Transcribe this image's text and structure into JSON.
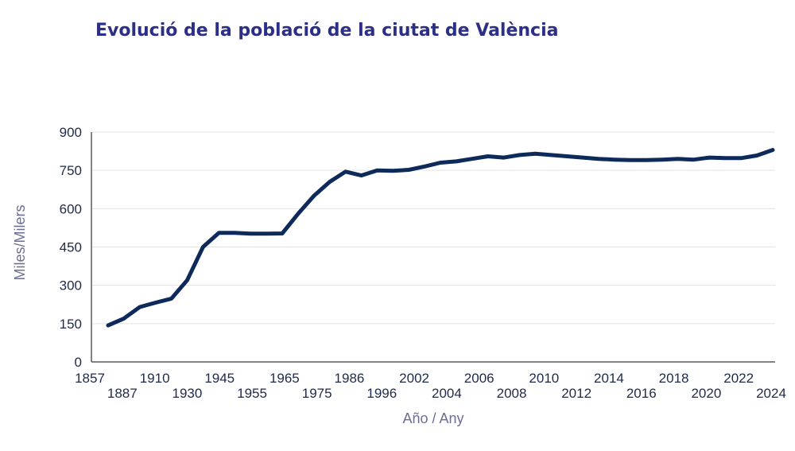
{
  "chart_data": {
    "type": "line",
    "title": "Evolució de la població de la ciutat de València",
    "xlabel": "Año / Any",
    "ylabel": "Miles/Milers",
    "ylim": [
      0,
      900
    ],
    "yticks": [
      0,
      150,
      300,
      450,
      600,
      750,
      900
    ],
    "grid": true,
    "legend": "none",
    "x": [
      "1857",
      "1877",
      "1887",
      "1900",
      "1910",
      "1920",
      "1930",
      "1940",
      "1945",
      "1950",
      "1955",
      "1960",
      "1965",
      "1970",
      "1975",
      "1981",
      "1986",
      "1991",
      "1996",
      "2000",
      "2002",
      "2003",
      "2004",
      "2005",
      "2006",
      "2007",
      "2008",
      "2009",
      "2010",
      "2011",
      "2012",
      "2013",
      "2014",
      "2015",
      "2016",
      "2017",
      "2018",
      "2019",
      "2020",
      "2021",
      "2022",
      "2023",
      "2024"
    ],
    "x_tick_labels_top": [
      "1857",
      "1910",
      "1945",
      "1965",
      "1986",
      "2002",
      "2006",
      "2010",
      "2014",
      "2018",
      "2022"
    ],
    "x_tick_labels_bottom": [
      "1887",
      "1930",
      "1955",
      "1975",
      "1996",
      "2004",
      "2008",
      "2012",
      "2016",
      "2020",
      "2024"
    ],
    "series": [
      {
        "color": "#0d2a5a",
        "values": [
          143,
          170,
          215,
          232,
          248,
          320,
          450,
          505,
          505,
          502,
          502,
          503,
          580,
          650,
          705,
          745,
          730,
          750,
          748,
          752,
          765,
          780,
          785,
          795,
          805,
          800,
          810,
          815,
          810,
          805,
          800,
          795,
          792,
          790,
          790,
          792,
          795,
          792,
          800,
          798,
          798,
          808,
          830
        ]
      }
    ]
  }
}
